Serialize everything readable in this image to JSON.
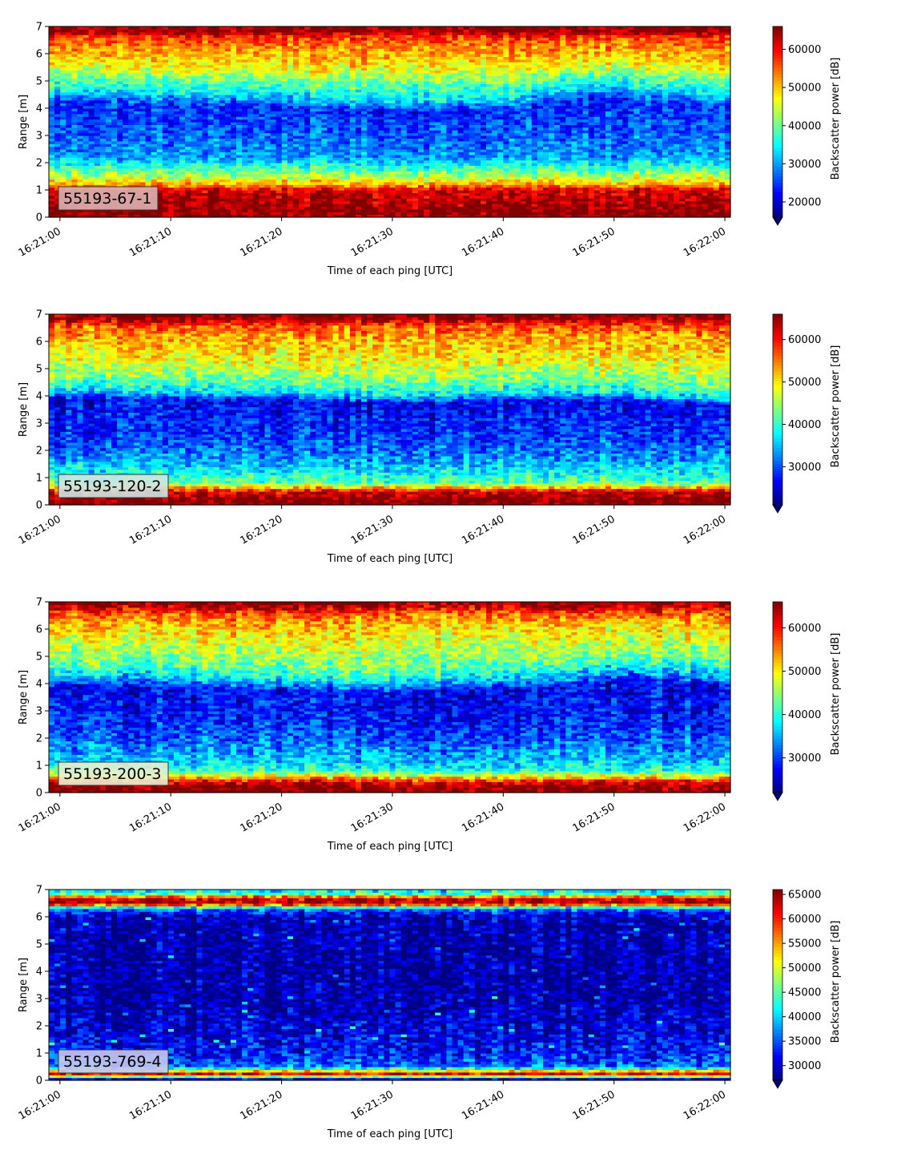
{
  "chart_data": [
    {
      "type": "heatmap",
      "panel_label": "55193-67-1",
      "label_bg": "#d9b3b3",
      "xlabel": "Time of each ping [UTC]",
      "ylabel": "Range [m]",
      "xticks": [
        "16:21:00",
        "16:21:10",
        "16:21:20",
        "16:21:30",
        "16:21:40",
        "16:21:50",
        "16:22:00"
      ],
      "yticks": [
        "0",
        "1",
        "2",
        "3",
        "4",
        "5",
        "6",
        "7"
      ],
      "ylim": [
        0,
        7
      ],
      "colorbar_label": "Backscatter power [dB]",
      "colorbar_ticks": [
        "20000",
        "30000",
        "40000",
        "50000",
        "60000"
      ],
      "clim": [
        16000,
        66000
      ],
      "colormap": "jet",
      "profile": [
        [
          0.2,
          66000
        ],
        [
          0.5,
          64000
        ],
        [
          1.0,
          62000
        ],
        [
          1.2,
          52000
        ],
        [
          1.5,
          44000
        ],
        [
          1.9,
          36000
        ],
        [
          2.2,
          30000
        ],
        [
          3.0,
          27000
        ],
        [
          4.0,
          24000
        ],
        [
          4.5,
          34000
        ],
        [
          5.0,
          40000
        ],
        [
          5.5,
          47000
        ],
        [
          6.2,
          53000
        ],
        [
          6.6,
          57000
        ],
        [
          6.8,
          64000
        ],
        [
          7.0,
          66000
        ]
      ],
      "layer_boundary": [
        [
          0,
          4.5
        ],
        [
          20,
          4.3
        ],
        [
          30,
          4.1
        ],
        [
          40,
          4.2
        ],
        [
          45,
          4.6
        ],
        [
          50,
          4.7
        ],
        [
          60,
          4.3
        ]
      ]
    },
    {
      "type": "heatmap",
      "panel_label": "55193-120-2",
      "label_bg": "#cfe4e4",
      "xlabel": "Time of each ping [UTC]",
      "ylabel": "Range [m]",
      "xticks": [
        "16:21:00",
        "16:21:10",
        "16:21:20",
        "16:21:30",
        "16:21:40",
        "16:21:50",
        "16:22:00"
      ],
      "yticks": [
        "0",
        "1",
        "2",
        "3",
        "4",
        "5",
        "6",
        "7"
      ],
      "ylim": [
        0,
        7
      ],
      "colorbar_label": "Backscatter power [dB]",
      "colorbar_ticks": [
        "30000",
        "40000",
        "50000",
        "60000"
      ],
      "clim": [
        21000,
        66000
      ],
      "colormap": "jet",
      "profile": [
        [
          0.2,
          66000
        ],
        [
          0.5,
          62000
        ],
        [
          0.8,
          42000
        ],
        [
          1.2,
          38000
        ],
        [
          1.5,
          35000
        ],
        [
          1.9,
          32000
        ],
        [
          2.5,
          29000
        ],
        [
          3.5,
          27000
        ],
        [
          4.0,
          26000
        ],
        [
          4.3,
          36000
        ],
        [
          4.8,
          43000
        ],
        [
          5.5,
          49000
        ],
        [
          6.2,
          53000
        ],
        [
          6.6,
          57000
        ],
        [
          6.8,
          64000
        ],
        [
          7.0,
          66000
        ]
      ],
      "layer_boundary": [
        [
          0,
          4.2
        ],
        [
          20,
          4.1
        ],
        [
          30,
          3.9
        ],
        [
          40,
          4.1
        ],
        [
          50,
          4.1
        ],
        [
          60,
          3.8
        ]
      ]
    },
    {
      "type": "heatmap",
      "panel_label": "55193-200-3",
      "label_bg": "#e8efd0",
      "xlabel": "Time of each ping [UTC]",
      "ylabel": "Range [m]",
      "xticks": [
        "16:21:00",
        "16:21:10",
        "16:21:20",
        "16:21:30",
        "16:21:40",
        "16:21:50",
        "16:22:00"
      ],
      "yticks": [
        "0",
        "1",
        "2",
        "3",
        "4",
        "5",
        "6",
        "7"
      ],
      "ylim": [
        0,
        7
      ],
      "colorbar_label": "Backscatter power [dB]",
      "colorbar_ticks": [
        "30000",
        "40000",
        "50000",
        "60000"
      ],
      "clim": [
        22000,
        66000
      ],
      "colormap": "jet",
      "profile": [
        [
          0.2,
          66000
        ],
        [
          0.4,
          62000
        ],
        [
          0.6,
          50000
        ],
        [
          0.8,
          40000
        ],
        [
          1.2,
          36000
        ],
        [
          2.0,
          31000
        ],
        [
          3.0,
          28000
        ],
        [
          4.0,
          27000
        ],
        [
          4.3,
          34000
        ],
        [
          4.8,
          42000
        ],
        [
          5.5,
          47000
        ],
        [
          6.2,
          52000
        ],
        [
          6.6,
          57000
        ],
        [
          6.8,
          63000
        ],
        [
          7.0,
          66000
        ]
      ],
      "layer_boundary": [
        [
          0,
          4.2
        ],
        [
          20,
          4.0
        ],
        [
          30,
          3.8
        ],
        [
          40,
          4.0
        ],
        [
          50,
          4.4
        ],
        [
          60,
          4.2
        ]
      ]
    },
    {
      "type": "heatmap",
      "panel_label": "55193-769-4",
      "label_bg": "#c8c8ee",
      "xlabel": "Time of each ping [UTC]",
      "ylabel": "Range [m]",
      "xticks": [
        "16:21:00",
        "16:21:10",
        "16:21:20",
        "16:21:30",
        "16:21:40",
        "16:21:50",
        "16:22:00"
      ],
      "yticks": [
        "0",
        "1",
        "2",
        "3",
        "4",
        "5",
        "6",
        "7"
      ],
      "ylim": [
        0,
        7
      ],
      "colorbar_label": "Backscatter power [dB]",
      "colorbar_ticks": [
        "30000",
        "35000",
        "40000",
        "45000",
        "50000",
        "55000",
        "60000",
        "65000"
      ],
      "clim": [
        27000,
        66000
      ],
      "colormap": "jet",
      "profile": [
        [
          0.1,
          30000
        ],
        [
          0.2,
          66000
        ],
        [
          0.35,
          52000
        ],
        [
          0.5,
          36000
        ],
        [
          1.0,
          32000
        ],
        [
          2.0,
          30000
        ],
        [
          3.0,
          28000
        ],
        [
          5.0,
          28000
        ],
        [
          6.0,
          29000
        ],
        [
          6.3,
          36000
        ],
        [
          6.5,
          64000
        ],
        [
          6.7,
          62000
        ],
        [
          6.85,
          44000
        ],
        [
          7.0,
          40000
        ]
      ],
      "layer_boundary": []
    }
  ]
}
